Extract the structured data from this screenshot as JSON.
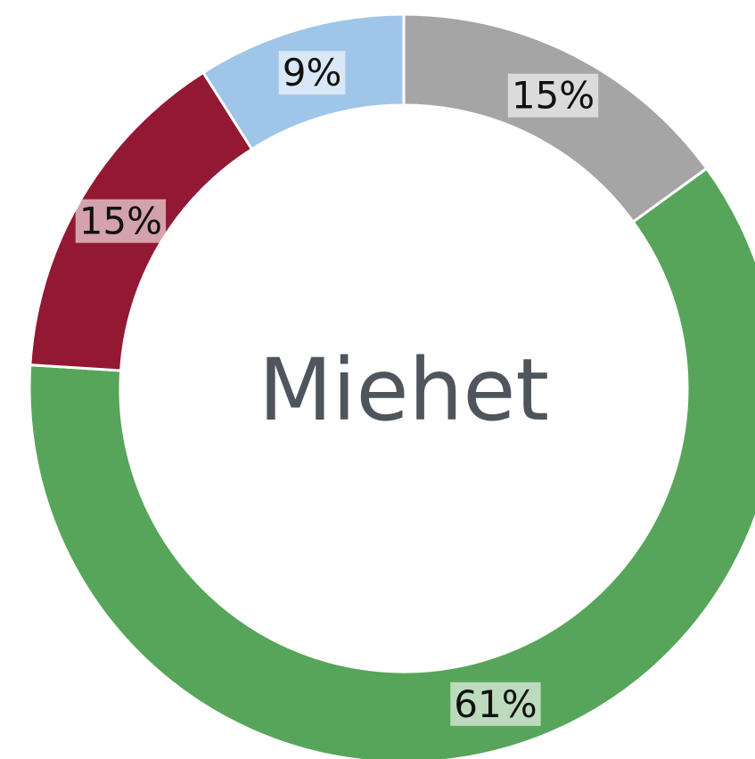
{
  "chart_data": {
    "type": "donut",
    "center_label": "Miehet",
    "values": [
      15,
      61,
      15,
      9
    ],
    "value_labels": [
      "15%",
      "61%",
      "15%",
      "9%"
    ],
    "colors": [
      "#a5a5a5",
      "#57a55a",
      "#931834",
      "#9fc5e8"
    ]
  }
}
